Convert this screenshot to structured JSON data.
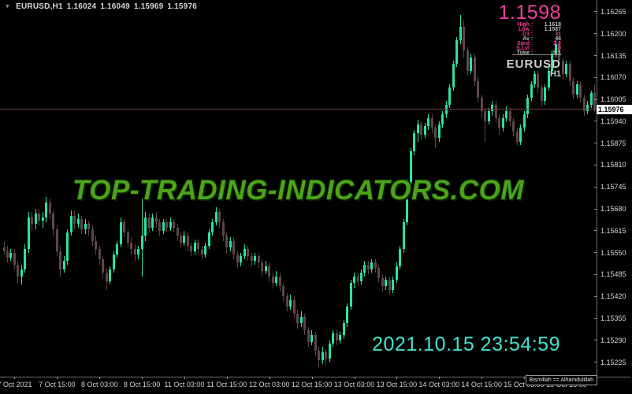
{
  "header": {
    "dropdown_icon": "▼",
    "symbol": "EURUSD,H1",
    "open": "1.16024",
    "high": "1.16049",
    "low": "1.15969",
    "close": "1.15976"
  },
  "watermark": {
    "text": "TOP-TRADING-INDICATORS.COM",
    "color": "#4ba417"
  },
  "info_panel": {
    "big_price": "1.1598",
    "accent_color": "#ef3f99",
    "rows": [
      {
        "label": "High",
        "value": "1.1618",
        "label_accent": true,
        "value_accent": false
      },
      {
        "label": "Low",
        "value": "1.1587",
        "label_accent": true,
        "value_accent": false
      },
      {
        "label": "D1",
        "value": "31",
        "label_accent": true,
        "value_accent": true
      },
      {
        "label": "Av",
        "value": "46",
        "label_accent": false,
        "value_accent": false
      },
      {
        "label": "Sprd",
        "value": "2.6",
        "label_accent": true,
        "value_accent": true
      },
      {
        "label": "S.Lvl",
        "value": "0",
        "label_accent": true,
        "value_accent": true
      },
      {
        "label": "Time",
        "value": "5:1",
        "label_accent": false,
        "value_accent": false
      }
    ],
    "symbol": "EURUSD",
    "timeframe": "H1"
  },
  "clock": {
    "datetime": "2021.10.15 23:54:59",
    "color": "#3fe4d0",
    "caption": "Bismillah == Alhamdulillah"
  },
  "price_axis": {
    "labels": [
      "1.16265",
      "1.16200",
      "1.16135",
      "1.16070",
      "1.16005",
      "1.15940",
      "1.15875",
      "1.15810",
      "1.15745",
      "1.15680",
      "1.15615",
      "1.15550",
      "1.15485",
      "1.15420",
      "1.15355",
      "1.15290",
      "1.15225"
    ],
    "current": "1.15976"
  },
  "time_axis": {
    "labels": [
      "7 Oct 2021",
      "7 Oct 15:00",
      "8 Oct 03:00",
      "8 Oct 15:00",
      "11 Oct 03:00",
      "11 Oct 15:00",
      "12 Oct 03:00",
      "12 Oct 15:00",
      "13 Oct 03:00",
      "13 Oct 15:00",
      "14 Oct 03:00",
      "14 Oct 15:00",
      "15 Oct 03:00",
      "15 Oct 15:00"
    ]
  },
  "chart_data": {
    "type": "candlestick",
    "title": "EURUSD H1",
    "symbol": "EURUSD",
    "timeframe": "H1",
    "x_start": "7 Oct 2021 00:00",
    "x_end": "15 Oct 2021 23:00",
    "ylim": [
      1.15182,
      1.163
    ],
    "price_step": 0.00065,
    "current_price": 1.15976,
    "colors": {
      "bull": "#2ae3a0",
      "bear": "#5e4450",
      "price_line": "#6d4040"
    },
    "candles": [
      [
        1.15565,
        1.15585,
        1.15545,
        1.15555
      ],
      [
        1.15555,
        1.1557,
        1.1552,
        1.15535
      ],
      [
        1.15535,
        1.1556,
        1.15525,
        1.1555
      ],
      [
        1.1555,
        1.1556,
        1.155,
        1.15515
      ],
      [
        1.15515,
        1.15525,
        1.1546,
        1.1548
      ],
      [
        1.1548,
        1.15515,
        1.15455,
        1.155
      ],
      [
        1.155,
        1.15575,
        1.1549,
        1.1556
      ],
      [
        1.1556,
        1.1567,
        1.1555,
        1.15655
      ],
      [
        1.15655,
        1.1567,
        1.15615,
        1.15635
      ],
      [
        1.15635,
        1.1568,
        1.1562,
        1.15665
      ],
      [
        1.15665,
        1.1568,
        1.1563,
        1.15645
      ],
      [
        1.15645,
        1.1567,
        1.15625,
        1.15655
      ],
      [
        1.15655,
        1.15715,
        1.1564,
        1.157
      ],
      [
        1.157,
        1.1571,
        1.1565,
        1.15665
      ],
      [
        1.15665,
        1.15675,
        1.156,
        1.1562
      ],
      [
        1.1562,
        1.1563,
        1.1554,
        1.15555
      ],
      [
        1.15555,
        1.1557,
        1.1548,
        1.155
      ],
      [
        1.155,
        1.1554,
        1.1549,
        1.15525
      ],
      [
        1.15525,
        1.1562,
        1.15515,
        1.1561
      ],
      [
        1.1561,
        1.15675,
        1.156,
        1.1566
      ],
      [
        1.1566,
        1.15675,
        1.1562,
        1.15635
      ],
      [
        1.15635,
        1.15665,
        1.15625,
        1.1565
      ],
      [
        1.1565,
        1.1566,
        1.15605,
        1.1562
      ],
      [
        1.1562,
        1.1565,
        1.15605,
        1.15635
      ],
      [
        1.15635,
        1.15645,
        1.156,
        1.1562
      ],
      [
        1.1562,
        1.1563,
        1.1557,
        1.15585
      ],
      [
        1.15585,
        1.156,
        1.15545,
        1.1556
      ],
      [
        1.1556,
        1.1557,
        1.15515,
        1.1553
      ],
      [
        1.1553,
        1.1554,
        1.15475,
        1.1549
      ],
      [
        1.1549,
        1.15505,
        1.1544,
        1.15465
      ],
      [
        1.15465,
        1.1551,
        1.15455,
        1.155
      ],
      [
        1.155,
        1.15555,
        1.1549,
        1.15545
      ],
      [
        1.15545,
        1.15585,
        1.15535,
        1.15575
      ],
      [
        1.15575,
        1.15655,
        1.15565,
        1.1564
      ],
      [
        1.1564,
        1.1565,
        1.15595,
        1.1561
      ],
      [
        1.1561,
        1.1562,
        1.15565,
        1.1558
      ],
      [
        1.1558,
        1.15595,
        1.15545,
        1.1556
      ],
      [
        1.1556,
        1.15575,
        1.15525,
        1.15545
      ],
      [
        1.15545,
        1.1557,
        1.1553,
        1.1556
      ],
      [
        1.1556,
        1.1571,
        1.1548,
        1.156
      ],
      [
        1.156,
        1.1567,
        1.15585,
        1.15655
      ],
      [
        1.15655,
        1.15665,
        1.1561,
        1.15625
      ],
      [
        1.15625,
        1.15665,
        1.15615,
        1.15655
      ],
      [
        1.15655,
        1.1567,
        1.15625,
        1.1564
      ],
      [
        1.1564,
        1.1565,
        1.156,
        1.15615
      ],
      [
        1.15615,
        1.1565,
        1.15605,
        1.1564
      ],
      [
        1.1564,
        1.1565,
        1.1561,
        1.15625
      ],
      [
        1.15625,
        1.15655,
        1.15615,
        1.1564
      ],
      [
        1.1564,
        1.1565,
        1.1561,
        1.15625
      ],
      [
        1.15625,
        1.15635,
        1.15585,
        1.156
      ],
      [
        1.156,
        1.1561,
        1.15565,
        1.1558
      ],
      [
        1.1558,
        1.15615,
        1.1557,
        1.156
      ],
      [
        1.156,
        1.1561,
        1.15555,
        1.1557
      ],
      [
        1.1557,
        1.1558,
        1.1554,
        1.15555
      ],
      [
        1.15555,
        1.1559,
        1.15545,
        1.1558
      ],
      [
        1.1558,
        1.1559,
        1.15545,
        1.1556
      ],
      [
        1.1556,
        1.1557,
        1.1553,
        1.15545
      ],
      [
        1.15545,
        1.1558,
        1.15535,
        1.1557
      ],
      [
        1.1557,
        1.1562,
        1.1556,
        1.1561
      ],
      [
        1.1561,
        1.1565,
        1.156,
        1.1564
      ],
      [
        1.1564,
        1.15685,
        1.1563,
        1.1567
      ],
      [
        1.1567,
        1.1568,
        1.15625,
        1.1564
      ],
      [
        1.1564,
        1.1565,
        1.15585,
        1.156
      ],
      [
        1.156,
        1.1561,
        1.1555,
        1.15565
      ],
      [
        1.15565,
        1.15595,
        1.15555,
        1.15585
      ],
      [
        1.15585,
        1.15595,
        1.1553,
        1.15545
      ],
      [
        1.15545,
        1.15555,
        1.15505,
        1.1552
      ],
      [
        1.1552,
        1.1555,
        1.1551,
        1.1554
      ],
      [
        1.1554,
        1.15575,
        1.1553,
        1.1556
      ],
      [
        1.1556,
        1.1557,
        1.15525,
        1.1554
      ],
      [
        1.1554,
        1.1555,
        1.1551,
        1.15525
      ],
      [
        1.15525,
        1.1555,
        1.15515,
        1.1554
      ],
      [
        1.1554,
        1.1555,
        1.15505,
        1.1552
      ],
      [
        1.1552,
        1.1553,
        1.1548,
        1.15495
      ],
      [
        1.15495,
        1.15525,
        1.15485,
        1.1551
      ],
      [
        1.1551,
        1.1552,
        1.15465,
        1.1548
      ],
      [
        1.1548,
        1.1549,
        1.15445,
        1.1546
      ],
      [
        1.1546,
        1.15495,
        1.1545,
        1.1548
      ],
      [
        1.1548,
        1.1549,
        1.15435,
        1.1545
      ],
      [
        1.1545,
        1.1546,
        1.15405,
        1.1542
      ],
      [
        1.1542,
        1.1543,
        1.15375,
        1.1539
      ],
      [
        1.1539,
        1.15425,
        1.1538,
        1.1541
      ],
      [
        1.1541,
        1.1542,
        1.15355,
        1.1537
      ],
      [
        1.1537,
        1.1538,
        1.15325,
        1.1534
      ],
      [
        1.1534,
        1.15375,
        1.1533,
        1.1536
      ],
      [
        1.1536,
        1.1537,
        1.15305,
        1.1532
      ],
      [
        1.1532,
        1.1533,
        1.1527,
        1.15285
      ],
      [
        1.15285,
        1.1532,
        1.15275,
        1.15305
      ],
      [
        1.15305,
        1.15315,
        1.15245,
        1.1526
      ],
      [
        1.1526,
        1.1527,
        1.1521,
        1.1523
      ],
      [
        1.1523,
        1.1527,
        1.1522,
        1.15255
      ],
      [
        1.15255,
        1.15265,
        1.15215,
        1.15235
      ],
      [
        1.15235,
        1.1529,
        1.15225,
        1.1528
      ],
      [
        1.1528,
        1.1532,
        1.1527,
        1.1531
      ],
      [
        1.1531,
        1.1532,
        1.15275,
        1.1529
      ],
      [
        1.1529,
        1.15315,
        1.1528,
        1.15305
      ],
      [
        1.15305,
        1.1535,
        1.15295,
        1.1534
      ],
      [
        1.1534,
        1.154,
        1.1533,
        1.1539
      ],
      [
        1.1539,
        1.1547,
        1.1538,
        1.1546
      ],
      [
        1.1546,
        1.1549,
        1.15445,
        1.1548
      ],
      [
        1.1548,
        1.1549,
        1.1545,
        1.15465
      ],
      [
        1.15465,
        1.155,
        1.15455,
        1.1549
      ],
      [
        1.1549,
        1.15525,
        1.1548,
        1.15515
      ],
      [
        1.15515,
        1.15525,
        1.15485,
        1.155
      ],
      [
        1.155,
        1.1553,
        1.1549,
        1.1552
      ],
      [
        1.1552,
        1.1553,
        1.1549,
        1.15505
      ],
      [
        1.15505,
        1.15515,
        1.1546,
        1.15475
      ],
      [
        1.15475,
        1.15485,
        1.15435,
        1.1545
      ],
      [
        1.1545,
        1.1548,
        1.1544,
        1.1547
      ],
      [
        1.1547,
        1.1548,
        1.15425,
        1.1544
      ],
      [
        1.1544,
        1.1548,
        1.1543,
        1.1547
      ],
      [
        1.1547,
        1.1552,
        1.1546,
        1.1551
      ],
      [
        1.1551,
        1.1557,
        1.155,
        1.1556
      ],
      [
        1.1556,
        1.1565,
        1.1555,
        1.1564
      ],
      [
        1.1564,
        1.1577,
        1.1563,
        1.1576
      ],
      [
        1.1576,
        1.1586,
        1.1575,
        1.1585
      ],
      [
        1.1585,
        1.15915,
        1.1584,
        1.15905
      ],
      [
        1.15905,
        1.15945,
        1.1588,
        1.1593
      ],
      [
        1.1593,
        1.1594,
        1.15885,
        1.159
      ],
      [
        1.159,
        1.15935,
        1.1589,
        1.15925
      ],
      [
        1.15925,
        1.1596,
        1.15915,
        1.1595
      ],
      [
        1.1595,
        1.1596,
        1.15905,
        1.1592
      ],
      [
        1.1592,
        1.1593,
        1.1586,
        1.1589
      ],
      [
        1.1589,
        1.1594,
        1.1588,
        1.1593
      ],
      [
        1.1593,
        1.1597,
        1.1592,
        1.1596
      ],
      [
        1.1596,
        1.16,
        1.1595,
        1.1599
      ],
      [
        1.1599,
        1.1605,
        1.1598,
        1.1604
      ],
      [
        1.1604,
        1.1612,
        1.1603,
        1.1611
      ],
      [
        1.1611,
        1.1619,
        1.161,
        1.1618
      ],
      [
        1.1618,
        1.16255,
        1.1617,
        1.1622
      ],
      [
        1.1622,
        1.1624,
        1.1613,
        1.1615
      ],
      [
        1.1615,
        1.1616,
        1.16075,
        1.1609
      ],
      [
        1.1609,
        1.1614,
        1.1608,
        1.1613
      ],
      [
        1.1613,
        1.1614,
        1.16045,
        1.1606
      ],
      [
        1.1606,
        1.1607,
        1.15995,
        1.1601
      ],
      [
        1.1601,
        1.1602,
        1.1595,
        1.1597
      ],
      [
        1.1597,
        1.1598,
        1.1588,
        1.1594
      ],
      [
        1.1594,
        1.1598,
        1.1593,
        1.1597
      ],
      [
        1.1597,
        1.16,
        1.15955,
        1.1599
      ],
      [
        1.1599,
        1.16,
        1.15935,
        1.1595
      ],
      [
        1.1595,
        1.1596,
        1.159,
        1.1592
      ],
      [
        1.1592,
        1.1596,
        1.1591,
        1.1595
      ],
      [
        1.1595,
        1.15985,
        1.1594,
        1.1597
      ],
      [
        1.1597,
        1.1598,
        1.15925,
        1.1594
      ],
      [
        1.1594,
        1.1595,
        1.15895,
        1.1591
      ],
      [
        1.1591,
        1.1592,
        1.1587,
        1.1588
      ],
      [
        1.1588,
        1.1593,
        1.1587,
        1.1592
      ],
      [
        1.1592,
        1.1597,
        1.1591,
        1.1596
      ],
      [
        1.1596,
        1.1602,
        1.1595,
        1.1601
      ],
      [
        1.1601,
        1.1606,
        1.16,
        1.1605
      ],
      [
        1.1605,
        1.1609,
        1.1604,
        1.1608
      ],
      [
        1.1608,
        1.1609,
        1.16025,
        1.1604
      ],
      [
        1.1604,
        1.1605,
        1.15985,
        1.16
      ],
      [
        1.16,
        1.1605,
        1.1599,
        1.1604
      ],
      [
        1.1604,
        1.161,
        1.1603,
        1.1609
      ],
      [
        1.1609,
        1.1615,
        1.1608,
        1.1614
      ],
      [
        1.1614,
        1.1618,
        1.1613,
        1.1617
      ],
      [
        1.1617,
        1.16175,
        1.16105,
        1.1612
      ],
      [
        1.1612,
        1.1613,
        1.16065,
        1.1608
      ],
      [
        1.1608,
        1.1612,
        1.1607,
        1.1611
      ],
      [
        1.1611,
        1.1612,
        1.16045,
        1.1606
      ],
      [
        1.1606,
        1.1607,
        1.16005,
        1.1602
      ],
      [
        1.1602,
        1.1606,
        1.1601,
        1.1605
      ],
      [
        1.1605,
        1.1606,
        1.15995,
        1.1601
      ],
      [
        1.1601,
        1.1602,
        1.15955,
        1.1597
      ],
      [
        1.1597,
        1.16,
        1.1596,
        1.1599
      ],
      [
        1.1599,
        1.1603,
        1.1598,
        1.16024
      ],
      [
        1.16024,
        1.16049,
        1.15969,
        1.15976
      ]
    ]
  }
}
